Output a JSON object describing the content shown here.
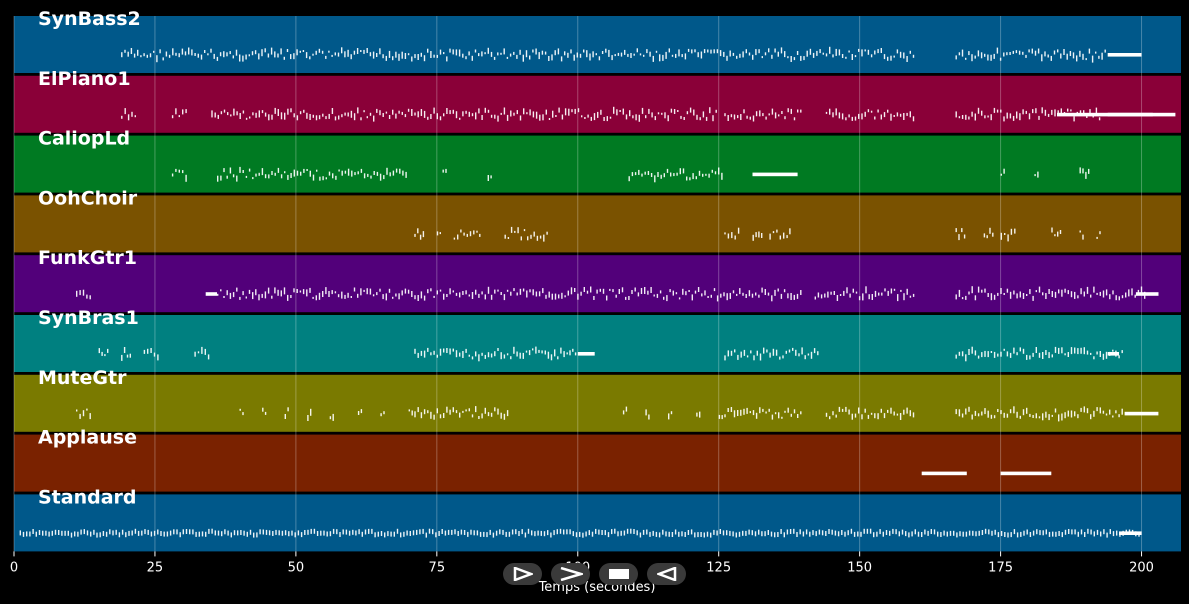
{
  "chart_data": {
    "type": "piano-roll",
    "xlabel": "Temps (secondes)",
    "xlim": [
      0,
      207
    ],
    "xticks": [
      0,
      25,
      50,
      75,
      100,
      125,
      150,
      175,
      200
    ],
    "grid": true,
    "tracks": [
      {
        "name": "SynBass2",
        "color": "#00588a",
        "regions": [
          [
            19,
            71
          ],
          [
            71,
            97
          ],
          [
            97,
            111
          ],
          [
            111,
            140
          ],
          [
            140,
            160
          ],
          [
            167,
            194
          ]
        ],
        "solid": [
          [
            194,
            200
          ]
        ]
      },
      {
        "name": "ElPiano1",
        "color": "#8a0038",
        "regions": [
          [
            19,
            22
          ],
          [
            28,
            31
          ],
          [
            35,
            40
          ],
          [
            40,
            71
          ],
          [
            71,
            88
          ],
          [
            88,
            100
          ],
          [
            100,
            125
          ],
          [
            126,
            140
          ],
          [
            144,
            160
          ],
          [
            167,
            193
          ]
        ],
        "solid": [
          [
            185,
            206
          ],
          [
            194,
            202
          ]
        ]
      },
      {
        "name": "CaliopLd",
        "color": "#007a22",
        "regions": [
          [
            28,
            31
          ],
          [
            36,
            70
          ],
          [
            76,
            77
          ],
          [
            84,
            85
          ],
          [
            109,
            126
          ],
          [
            175,
            176
          ],
          [
            181,
            182
          ],
          [
            189,
            191
          ]
        ],
        "solid": [
          [
            131,
            139
          ]
        ]
      },
      {
        "name": "OohChoir",
        "color": "#7a5200",
        "regions": [
          [
            71,
            73
          ],
          [
            75,
            76
          ],
          [
            78,
            82
          ],
          [
            82,
            83
          ],
          [
            87,
            95
          ],
          [
            126,
            129
          ],
          [
            131,
            133
          ],
          [
            134,
            137
          ],
          [
            137,
            138
          ],
          [
            167,
            169
          ],
          [
            172,
            174
          ],
          [
            175,
            178
          ],
          [
            184,
            186
          ],
          [
            189,
            190
          ],
          [
            192,
            193
          ]
        ],
        "solid": []
      },
      {
        "name": "FunkGtr1",
        "color": "#52007a",
        "regions": [
          [
            11,
            14
          ],
          [
            36,
            71
          ],
          [
            71,
            88
          ],
          [
            88,
            105
          ],
          [
            105,
            132
          ],
          [
            132,
            140
          ],
          [
            142,
            160
          ],
          [
            167,
            192
          ],
          [
            192,
            201
          ]
        ],
        "solid": [
          [
            34,
            36
          ],
          [
            199,
            203
          ]
        ]
      },
      {
        "name": "SynBras1",
        "color": "#008080",
        "regions": [
          [
            15,
            17
          ],
          [
            19,
            21
          ],
          [
            23,
            26
          ],
          [
            32,
            35
          ],
          [
            71,
            88
          ],
          [
            88,
            98
          ],
          [
            98,
            100
          ],
          [
            126,
            138
          ],
          [
            138,
            143
          ],
          [
            167,
            192
          ],
          [
            192,
            197
          ]
        ],
        "solid": [
          [
            100,
            103
          ],
          [
            194,
            196
          ]
        ]
      },
      {
        "name": "MuteGtr",
        "color": "#7a7a00",
        "regions": [
          [
            11,
            14
          ],
          [
            40,
            41
          ],
          [
            44,
            45
          ],
          [
            48,
            49
          ],
          [
            52,
            53
          ],
          [
            56,
            57
          ],
          [
            61,
            62
          ],
          [
            65,
            66
          ],
          [
            70,
            71
          ],
          [
            71,
            88
          ],
          [
            108,
            109
          ],
          [
            112,
            113
          ],
          [
            116,
            117
          ],
          [
            121,
            122
          ],
          [
            125,
            126
          ],
          [
            126,
            140
          ],
          [
            144,
            160
          ],
          [
            167,
            192
          ],
          [
            192,
            197
          ]
        ],
        "solid": [
          [
            197,
            203
          ]
        ]
      },
      {
        "name": "Applause",
        "color": "#7a2200",
        "regions": [],
        "solid": [
          [
            161,
            167
          ],
          [
            167,
            169
          ],
          [
            175,
            184
          ]
        ]
      },
      {
        "name": "Standard",
        "color": "#00588a",
        "regions": [
          [
            1,
            200
          ]
        ],
        "solid": [
          [
            196,
            200
          ]
        ]
      }
    ]
  },
  "controls": {
    "play_label": "play",
    "fast_forward_label": "fast-forward",
    "stop_label": "stop",
    "rewind_label": "rewind"
  }
}
